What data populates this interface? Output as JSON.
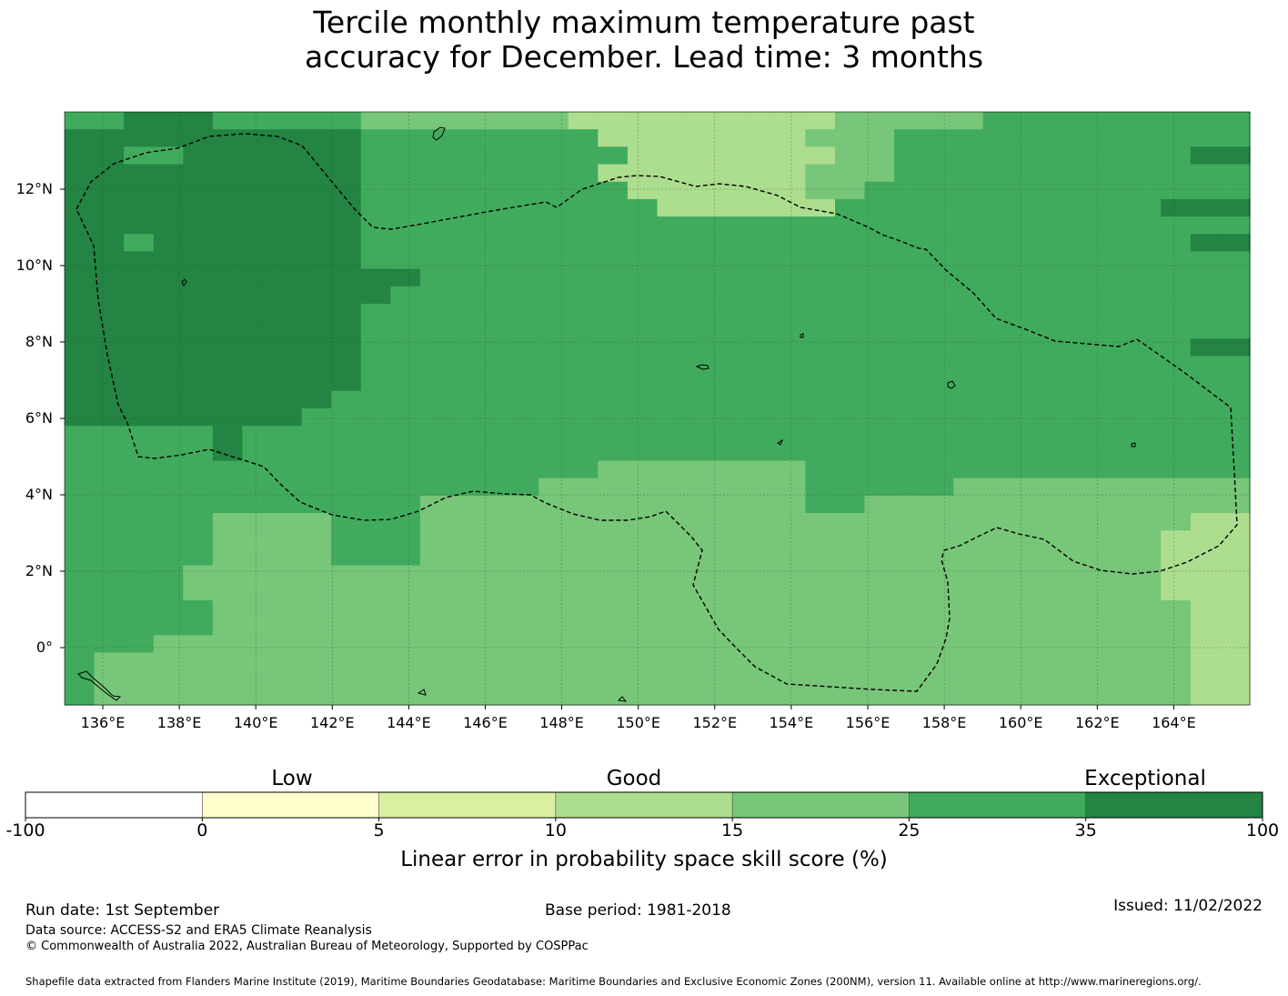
{
  "title_line1": "Tercile monthly maximum temperature past",
  "title_line2": "accuracy for December. Lead time: 3 months",
  "map": {
    "lat_labels": [
      "12°N",
      "10°N",
      "8°N",
      "6°N",
      "4°N",
      "2°N",
      "0°"
    ],
    "lon_labels": [
      "136°E",
      "138°E",
      "140°E",
      "142°E",
      "144°E",
      "146°E",
      "148°E",
      "150°E",
      "152°E",
      "154°E",
      "156°E",
      "158°E",
      "160°E",
      "162°E",
      "164°E"
    ],
    "grid_rows": [
      "5566655555444444433333333344444555555555",
      "6666666666555555553333333444555555555555",
      "6655666666555555555333333344555555555566",
      "6666666666555555553333333444555555555555",
      "6666666666555555555333333445555555555555",
      "6666666666555555555533333355555555555666",
      "6666666666555555555555555555555555555555",
      "6656666666555555555555555555555555555566",
      "6666666666555555555555555555555555555555",
      "6666666666665555555555555555555555555555",
      "6666666666655555555555555555555555555555",
      "6666666666555555555555555555555555555555",
      "6666666666555555555555555555555555555555",
      "6666666666555555555555555555555555555566",
      "6666666666555555555555555555555555555555",
      "6666666666555555555555555555555555555555",
      "6666666665555555555555555555555555555555",
      "6666666655555555555555555555555555555555",
      "5555565555555555555555555555555555555555",
      "5555565555555555555555555555555555555555",
      "5555555555555555554444444555555555555555",
      "5555555555555555444444444555554444444444",
      "5555555555554444444444444554444444444444",
      "5555544445554444444444444444444444444433",
      "5555544445554444444444444444444444444333",
      "5555544445554444444444444444444444444333",
      "5555444444444444444444444444444444444333",
      "5555444444444444444444444444444444444333",
      "5555544444444444444444444444444444444433",
      "5555544444444444444444444444444444444433",
      "5554444444444444444444444444444444444433",
      "5444444444444444444444444444444444444433",
      "5444444444444444444444444444444444444433",
      "5444444444444444444444444444444444444433"
    ],
    "colors": [
      "#ffffff",
      "#ffffcc",
      "#d9f0a3",
      "#addd8e",
      "#78c679",
      "#41ab5d",
      "#238443"
    ]
  },
  "colorbar": {
    "category_labels": [
      "Low",
      "Good",
      "Exceptional"
    ],
    "ticks": [
      "-100",
      "0",
      "5",
      "10",
      "15",
      "25",
      "35",
      "100"
    ],
    "colors": [
      "#ffffff",
      "#ffffcc",
      "#d9f0a3",
      "#addd8e",
      "#78c679",
      "#41ab5d",
      "#238443"
    ],
    "xlabel": "Linear error in probability space skill score (%)"
  },
  "footer": {
    "run_date": "Run date: 1st September",
    "base_period": "Base period: 1981-2018",
    "issued": "Issued: 11/02/2022",
    "data_source": "Data source: ACCESS-S2 and ERA5 Climate Reanalysis",
    "copyright": "© Commonwealth of Australia 2022, Australian Bureau of Meteorology, Supported by COSPPac",
    "shapefile": "Shapefile data extracted from Flanders Marine Institute (2019), Maritime Boundaries Geodatabase: Maritime Boundaries and Exclusive Economic Zones (200NM), version 11. Available online at http://www.marineregions.org/."
  }
}
